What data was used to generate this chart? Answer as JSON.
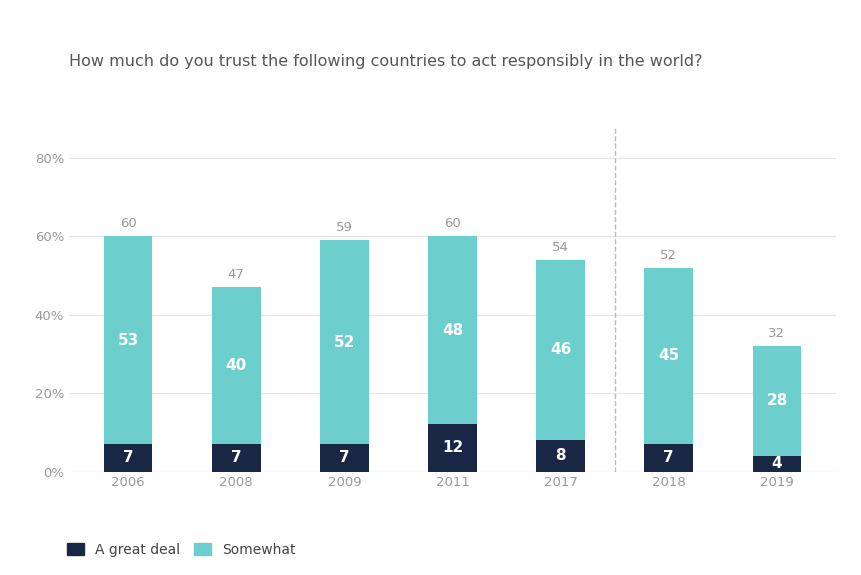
{
  "title": "How much do you trust the following countries to act responsibly in the world?",
  "years": [
    "2006",
    "2008",
    "2009",
    "2011",
    "2017",
    "2018",
    "2019"
  ],
  "great_deal": [
    7,
    7,
    7,
    12,
    8,
    7,
    4
  ],
  "somewhat": [
    53,
    40,
    52,
    48,
    46,
    45,
    28
  ],
  "totals": [
    60,
    47,
    59,
    60,
    54,
    52,
    32
  ],
  "color_great_deal": "#1a2744",
  "color_somewhat": "#6dcece",
  "background_color": "#ffffff",
  "ylim": [
    0,
    88
  ],
  "yticks": [
    0,
    20,
    40,
    60,
    80
  ],
  "ytick_labels": [
    "0%",
    "20%",
    "40%",
    "60%",
    "80%"
  ],
  "bar_width": 0.45,
  "divider_after_index": 4,
  "legend_label_great_deal": "A great deal",
  "legend_label_somewhat": "Somewhat",
  "title_fontsize": 11.5,
  "tick_fontsize": 9.5,
  "label_fontsize": 10,
  "annotation_fontsize": 11
}
